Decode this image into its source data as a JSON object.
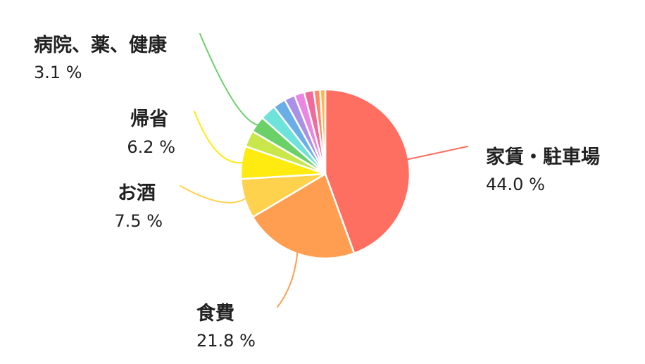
{
  "chart_data": {
    "type": "pie",
    "slices": [
      {
        "name": "家賃・駐車場",
        "percent": 44.0,
        "label": "44.0 %",
        "color": "#ff6f61"
      },
      {
        "name": "食費",
        "percent": 21.8,
        "label": "21.8 %",
        "color": "#ff9e50"
      },
      {
        "name": "お酒",
        "percent": 7.5,
        "label": "7.5 %",
        "color": "#ffd24d"
      },
      {
        "name": "帰省",
        "percent": 6.2,
        "label": "6.2 %",
        "color": "#ffeb10"
      },
      {
        "name": "",
        "percent": 3.1,
        "color": "#c9e64a"
      },
      {
        "name": "病院、薬、健康",
        "percent": 3.1,
        "label": "3.1 %",
        "color": "#6bd068"
      },
      {
        "name": "",
        "percent": 3.0,
        "color": "#6de3dc"
      },
      {
        "name": "",
        "percent": 2.4,
        "color": "#6aaee8"
      },
      {
        "name": "",
        "percent": 2.0,
        "color": "#a891e6"
      },
      {
        "name": "",
        "percent": 1.9,
        "color": "#e888e3"
      },
      {
        "name": "",
        "percent": 1.8,
        "color": "#f06b9c"
      },
      {
        "name": "",
        "percent": 1.2,
        "color": "#ff8a65"
      },
      {
        "name": "",
        "percent": 1.0,
        "color": "#ffb74d"
      }
    ]
  }
}
